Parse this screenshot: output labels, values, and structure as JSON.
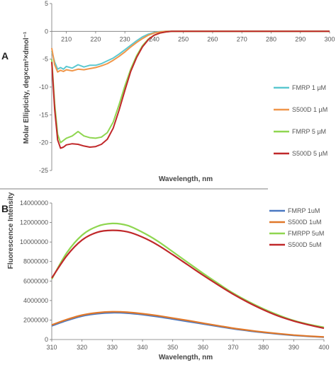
{
  "chart_data": [
    {
      "panel_label": "A",
      "type": "line",
      "xlabel": "Wavelength, nm",
      "ylabel": "Molar Ellipticity, deg×cm²×dmol⁻¹",
      "xlim": [
        205,
        300
      ],
      "ylim": [
        -25,
        5
      ],
      "x_ticks": [
        210,
        220,
        230,
        240,
        250,
        260,
        270,
        280,
        290,
        300
      ],
      "y_ticks": [
        5,
        0,
        -5,
        -10,
        -15,
        -20,
        -25
      ],
      "x_axis_position": "y=0",
      "legend_position": "right",
      "series": [
        {
          "name": "FMRP 1 µM",
          "color": "#5cc8d0",
          "x": [
            205,
            206,
            207,
            208,
            209,
            210,
            212,
            214,
            216,
            218,
            220,
            222,
            224,
            226,
            228,
            230,
            232,
            234,
            236,
            238,
            240,
            242,
            244,
            246,
            248,
            250,
            255,
            260,
            270,
            280,
            290,
            300
          ],
          "y": [
            -3.5,
            -5.5,
            -6.8,
            -6.5,
            -6.8,
            -6.3,
            -6.6,
            -6.0,
            -6.4,
            -6.1,
            -6.1,
            -5.8,
            -5.3,
            -4.8,
            -4.1,
            -3.3,
            -2.5,
            -1.7,
            -1.0,
            -0.5,
            -0.2,
            -0.05,
            0,
            0,
            0,
            0,
            0,
            0,
            0,
            0,
            0,
            0
          ]
        },
        {
          "name": "S500D 1 µM",
          "color": "#f0964a",
          "x": [
            205,
            206,
            207,
            208,
            209,
            210,
            212,
            214,
            216,
            218,
            220,
            222,
            224,
            226,
            228,
            230,
            232,
            234,
            236,
            238,
            240,
            242,
            244,
            246,
            248,
            250,
            255,
            260,
            270,
            280,
            290,
            300
          ],
          "y": [
            -3.0,
            -6.0,
            -7.3,
            -7.0,
            -7.2,
            -6.9,
            -7.1,
            -6.8,
            -6.9,
            -6.7,
            -6.5,
            -6.2,
            -5.8,
            -5.2,
            -4.5,
            -3.7,
            -2.8,
            -2.0,
            -1.3,
            -0.7,
            -0.3,
            -0.1,
            0,
            0,
            0,
            0,
            0,
            0,
            0,
            0,
            0,
            0
          ]
        },
        {
          "name": "FMRP 5 µM",
          "color": "#8fd650",
          "x": [
            205,
            206,
            207,
            208,
            209,
            210,
            212,
            214,
            216,
            218,
            220,
            222,
            224,
            226,
            228,
            230,
            232,
            234,
            236,
            238,
            240,
            242,
            244,
            246,
            248,
            250,
            255,
            260,
            270,
            280,
            290,
            300
          ],
          "y": [
            -5.0,
            -13.0,
            -18.5,
            -20.0,
            -19.6,
            -19.2,
            -18.8,
            -18.0,
            -18.8,
            -19.1,
            -19.2,
            -19.0,
            -18.2,
            -16.3,
            -13.2,
            -9.8,
            -6.8,
            -4.4,
            -2.6,
            -1.4,
            -0.7,
            -0.3,
            -0.1,
            0,
            0,
            0,
            0,
            0,
            0,
            0,
            0,
            0
          ]
        },
        {
          "name": "S500D 5 µM",
          "color": "#c0282a",
          "x": [
            205,
            206,
            207,
            208,
            209,
            210,
            212,
            214,
            216,
            218,
            220,
            222,
            224,
            226,
            228,
            230,
            232,
            234,
            236,
            238,
            240,
            242,
            244,
            246,
            248,
            250,
            255,
            260,
            270,
            280,
            290,
            300
          ],
          "y": [
            -5.5,
            -14.0,
            -19.5,
            -21.0,
            -20.8,
            -20.4,
            -20.2,
            -20.3,
            -20.6,
            -20.8,
            -20.7,
            -20.3,
            -19.4,
            -17.4,
            -14.2,
            -10.6,
            -7.2,
            -4.7,
            -2.8,
            -1.5,
            -0.7,
            -0.3,
            -0.1,
            0,
            0,
            0,
            0,
            0,
            0,
            0,
            0,
            0
          ]
        }
      ]
    },
    {
      "panel_label": "B",
      "type": "line",
      "xlabel": "Wavelength, nm",
      "ylabel": "Fluorescence Intensity",
      "xlim": [
        310,
        400
      ],
      "ylim": [
        0,
        14000000
      ],
      "x_ticks": [
        310,
        320,
        330,
        340,
        350,
        360,
        370,
        380,
        390,
        400
      ],
      "y_ticks": [
        0,
        2000000,
        4000000,
        6000000,
        8000000,
        10000000,
        12000000,
        14000000
      ],
      "legend_position": "top-right",
      "series": [
        {
          "name": "FMRP 1uM",
          "color": "#4a78c2",
          "x": [
            310,
            315,
            320,
            325,
            330,
            335,
            340,
            345,
            350,
            355,
            360,
            365,
            370,
            375,
            380,
            385,
            390,
            395,
            400
          ],
          "y": [
            1400000,
            1950000,
            2400000,
            2650000,
            2750000,
            2700000,
            2550000,
            2350000,
            2100000,
            1850000,
            1600000,
            1350000,
            1100000,
            900000,
            720000,
            560000,
            430000,
            330000,
            250000
          ]
        },
        {
          "name": "S500D 1uM",
          "color": "#e0782a",
          "x": [
            310,
            315,
            320,
            325,
            330,
            335,
            340,
            345,
            350,
            355,
            360,
            365,
            370,
            375,
            380,
            385,
            390,
            395,
            400
          ],
          "y": [
            1500000,
            2050000,
            2500000,
            2750000,
            2850000,
            2800000,
            2650000,
            2450000,
            2200000,
            1950000,
            1680000,
            1420000,
            1160000,
            950000,
            760000,
            600000,
            460000,
            350000,
            270000
          ]
        },
        {
          "name": "FMRPP 5uM",
          "color": "#8fd650",
          "x": [
            310,
            315,
            320,
            325,
            330,
            335,
            340,
            345,
            350,
            355,
            360,
            365,
            370,
            375,
            380,
            385,
            390,
            395,
            400
          ],
          "y": [
            6200000,
            8900000,
            10700000,
            11600000,
            11900000,
            11700000,
            11000000,
            10100000,
            9000000,
            7900000,
            6800000,
            5750000,
            4750000,
            3900000,
            3150000,
            2500000,
            1950000,
            1550000,
            1250000
          ]
        },
        {
          "name": "S500D 5uM",
          "color": "#c0282a",
          "x": [
            310,
            315,
            320,
            325,
            330,
            335,
            340,
            345,
            350,
            355,
            360,
            365,
            370,
            375,
            380,
            385,
            390,
            395,
            400
          ],
          "y": [
            6300000,
            8600000,
            10200000,
            11000000,
            11200000,
            11050000,
            10500000,
            9700000,
            8700000,
            7650000,
            6600000,
            5600000,
            4650000,
            3800000,
            3050000,
            2400000,
            1900000,
            1500000,
            1150000
          ]
        }
      ]
    }
  ]
}
